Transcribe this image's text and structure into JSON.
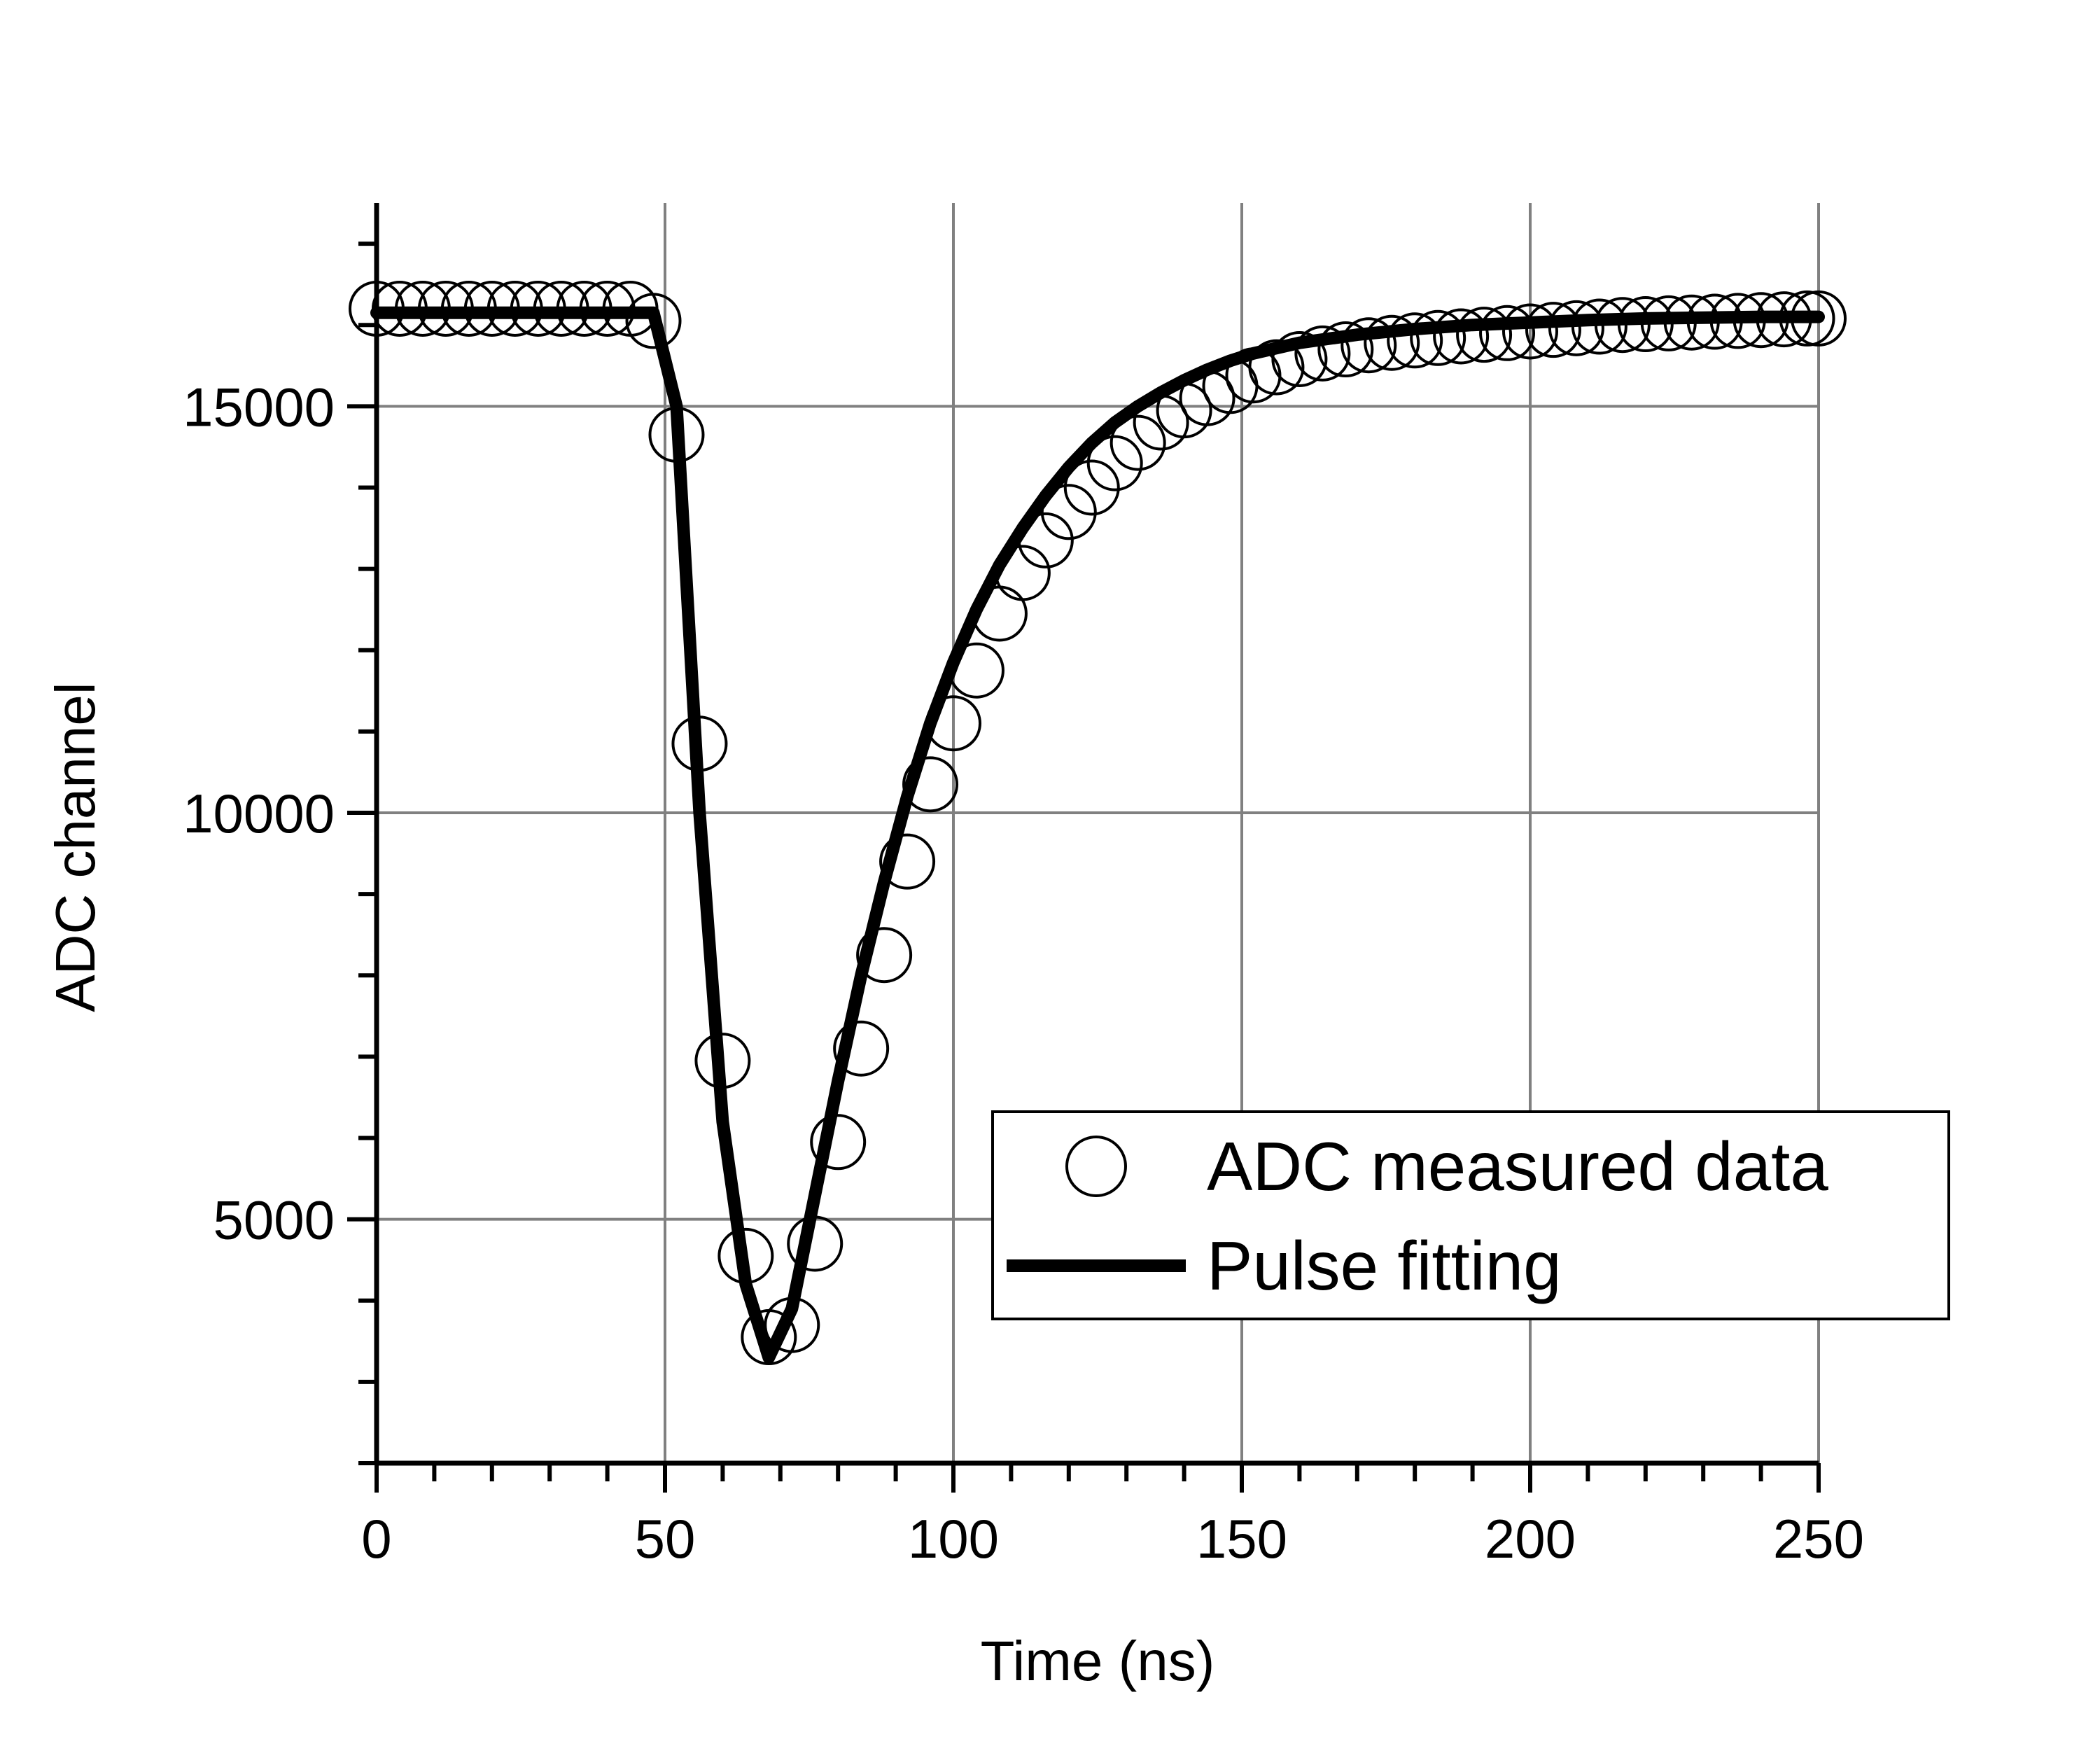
{
  "chart_data": {
    "type": "scatter",
    "title": "",
    "xlabel": "Time (ns)",
    "ylabel": "ADC channel",
    "xlim": [
      0,
      250
    ],
    "ylim": [
      2000,
      17500
    ],
    "grid": true,
    "legend_placement": "bottom-right",
    "x_ticks": [
      0,
      50,
      100,
      150,
      200,
      250
    ],
    "x_tick_labels": [
      "0",
      "50",
      "100",
      "150",
      "200",
      "250"
    ],
    "y_ticks": [
      5000,
      10000,
      15000
    ],
    "y_tick_labels": [
      "5000",
      "10000",
      "15000"
    ],
    "series": [
      {
        "name": "ADC measured data",
        "kind": "markers",
        "marker": "open-circle",
        "x": [
          0,
          4,
          8,
          12,
          16,
          20,
          24,
          28,
          32,
          36,
          40,
          44,
          48,
          52,
          56,
          60,
          64,
          68,
          72,
          76,
          80,
          84,
          88,
          92,
          96,
          100,
          104,
          108,
          112,
          116,
          120,
          124,
          128,
          132,
          136,
          140,
          144,
          148,
          152,
          156,
          160,
          164,
          168,
          172,
          176,
          180,
          184,
          188,
          192,
          196,
          200,
          204,
          208,
          212,
          216,
          220,
          224,
          228,
          232,
          236,
          240,
          244,
          248,
          250
        ],
        "y": [
          16200,
          16200,
          16200,
          16200,
          16200,
          16200,
          16200,
          16200,
          16200,
          16200,
          16200,
          16200,
          16050,
          14650,
          10850,
          6950,
          4550,
          3550,
          3700,
          4700,
          5950,
          7100,
          8250,
          9400,
          10350,
          11100,
          11750,
          12450,
          12950,
          13350,
          13700,
          14000,
          14300,
          14550,
          14800,
          14950,
          15100,
          15250,
          15380,
          15480,
          15580,
          15650,
          15700,
          15750,
          15780,
          15810,
          15840,
          15860,
          15880,
          15900,
          15920,
          15940,
          15960,
          15980,
          16000,
          16010,
          16020,
          16030,
          16040,
          16050,
          16060,
          16070,
          16080,
          16080
        ]
      },
      {
        "name": "Pulse fitting",
        "kind": "line",
        "x": [
          0,
          48,
          52,
          56,
          60,
          64,
          68,
          72,
          76,
          80,
          84,
          88,
          92,
          96,
          100,
          104,
          108,
          112,
          116,
          120,
          124,
          128,
          132,
          136,
          140,
          144,
          148,
          152,
          160,
          170,
          180,
          190,
          200,
          210,
          220,
          230,
          240,
          250
        ],
        "y": [
          16150,
          16150,
          15000,
          10000,
          6200,
          4200,
          3300,
          3900,
          5300,
          6700,
          8000,
          9150,
          10200,
          11100,
          11850,
          12500,
          13050,
          13500,
          13900,
          14250,
          14550,
          14800,
          15000,
          15170,
          15320,
          15450,
          15560,
          15650,
          15780,
          15880,
          15950,
          16000,
          16030,
          16060,
          16080,
          16090,
          16100,
          16100
        ]
      }
    ]
  }
}
